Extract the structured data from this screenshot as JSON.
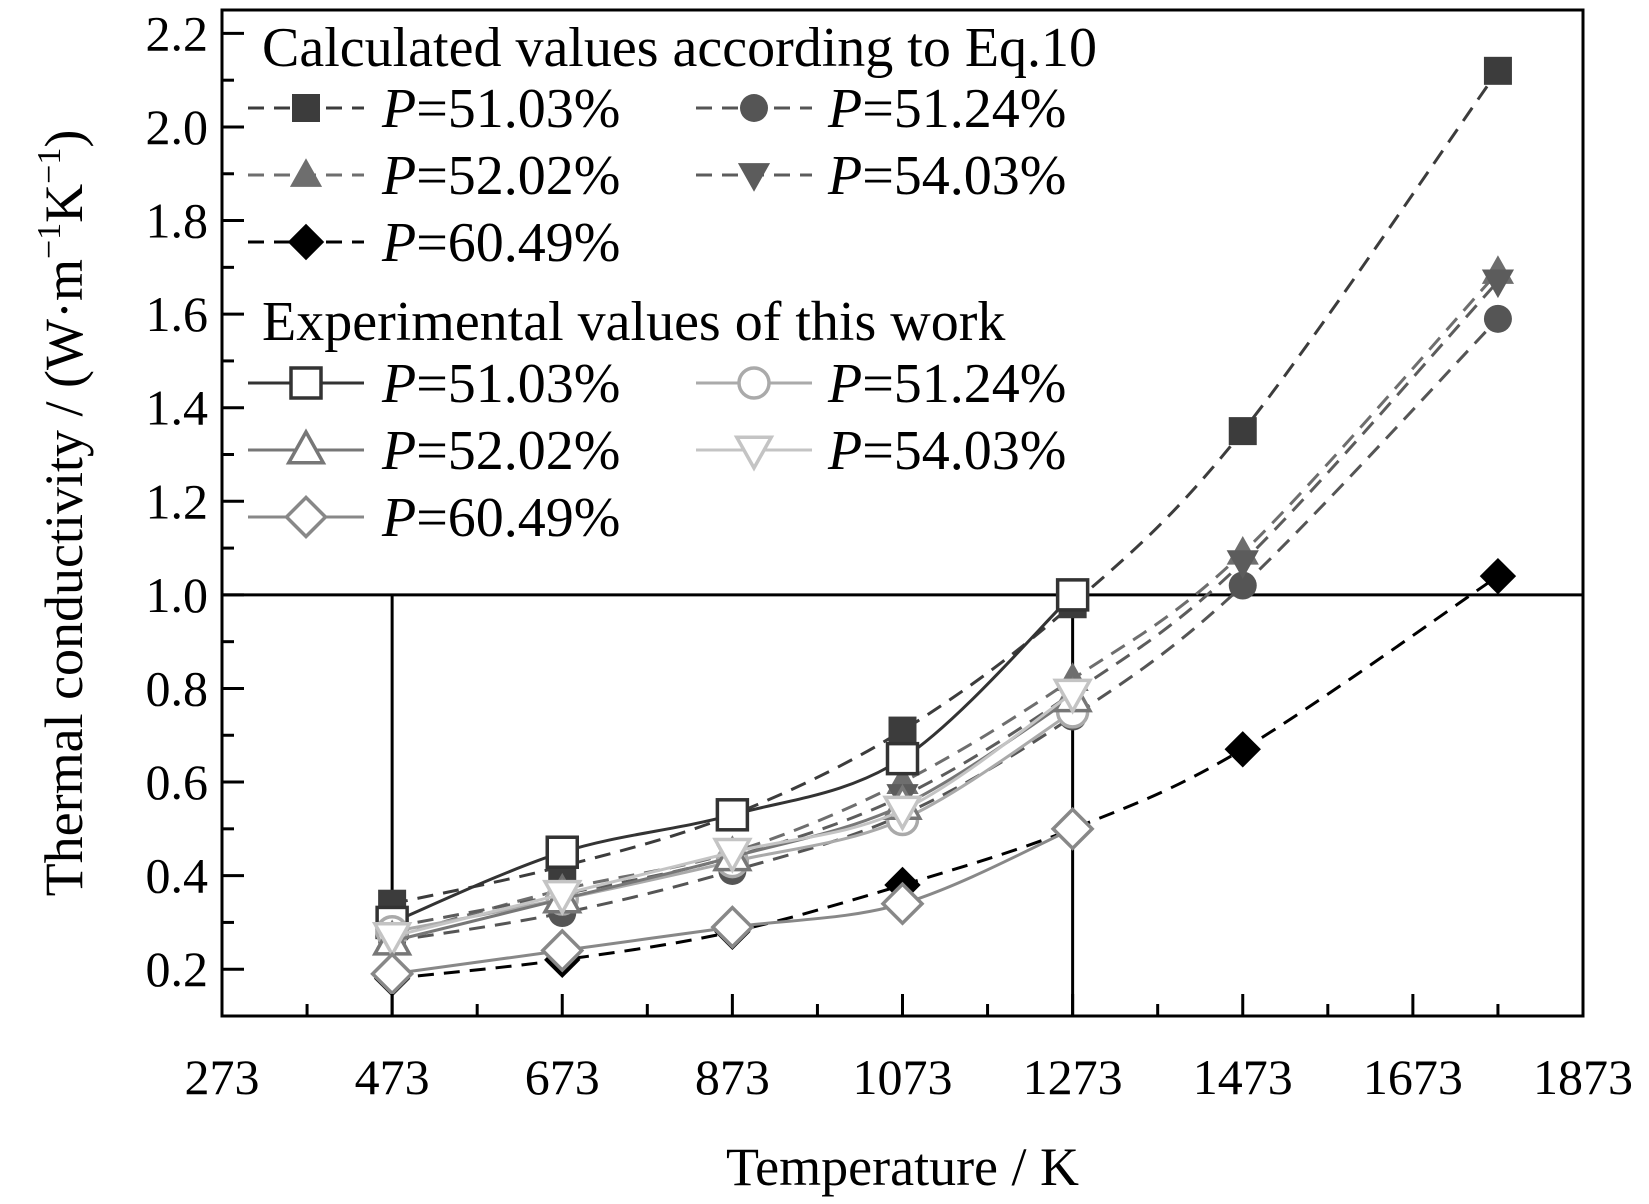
{
  "chart_data": {
    "type": "line",
    "xlabel": "Temperature / K",
    "ylabel_main": "Thermal conductivity / (W·m",
    "ylabel_sup1": "−1",
    "ylabel_mid": "K",
    "ylabel_sup2": "−1",
    "ylabel_end": ")",
    "xlim": [
      273,
      1873
    ],
    "ylim": [
      0.1,
      2.25
    ],
    "x_ticks": [
      273,
      473,
      673,
      873,
      1073,
      1273,
      1473,
      1673,
      1873
    ],
    "y_ticks": [
      0.2,
      0.4,
      0.6,
      0.8,
      1.0,
      1.2,
      1.4,
      1.6,
      1.8,
      2.0,
      2.2
    ],
    "reference_lines": {
      "horizontal_y": 1.0,
      "vertical_x": [
        473,
        1273
      ]
    },
    "legend_groups": [
      {
        "heading": "Calculated values according to Eq.10"
      },
      {
        "heading": "Experimental values of this work"
      }
    ],
    "series": [
      {
        "name": "P=51.03%",
        "var": "P",
        "value_text": "=51.03%",
        "group": 0,
        "marker": "square",
        "filled": true,
        "dashed": true,
        "color": "#3c3c3c",
        "x": [
          473,
          673,
          873,
          1073,
          1273,
          1473,
          1773
        ],
        "y": [
          0.34,
          0.42,
          0.53,
          0.71,
          0.98,
          1.35,
          2.12
        ]
      },
      {
        "name": "P=51.24%",
        "var": "P",
        "value_text": "=51.24%",
        "group": 0,
        "marker": "circle",
        "filled": true,
        "dashed": true,
        "color": "#555555",
        "x": [
          473,
          673,
          873,
          1073,
          1273,
          1473,
          1773
        ],
        "y": [
          0.26,
          0.32,
          0.41,
          0.53,
          0.74,
          1.02,
          1.59
        ]
      },
      {
        "name": "P=52.02%",
        "var": "P",
        "value_text": "=52.02%",
        "group": 0,
        "marker": "triangle-up",
        "filled": true,
        "dashed": true,
        "color": "#6e6e6e",
        "x": [
          473,
          673,
          873,
          1073,
          1273,
          1473,
          1773
        ],
        "y": [
          0.27,
          0.37,
          0.45,
          0.6,
          0.82,
          1.09,
          1.69
        ]
      },
      {
        "name": "P=54.03%",
        "var": "P",
        "value_text": "=54.03%",
        "group": 0,
        "marker": "triangle-down",
        "filled": true,
        "dashed": true,
        "color": "#5c5c5c",
        "x": [
          473,
          673,
          873,
          1073,
          1273,
          1473,
          1773
        ],
        "y": [
          0.29,
          0.36,
          0.44,
          0.57,
          0.79,
          1.07,
          1.67
        ]
      },
      {
        "name": "P=60.49%",
        "var": "P",
        "value_text": "=60.49%",
        "group": 0,
        "marker": "diamond",
        "filled": true,
        "dashed": true,
        "color": "#000000",
        "x": [
          473,
          673,
          873,
          1073,
          1273,
          1473,
          1773
        ],
        "y": [
          0.18,
          0.22,
          0.28,
          0.38,
          0.5,
          0.67,
          1.04
        ]
      },
      {
        "name": "P=51.03%",
        "var": "P",
        "value_text": "=51.03%",
        "group": 1,
        "marker": "square",
        "filled": false,
        "dashed": false,
        "color": "#333333",
        "x": [
          473,
          673,
          873,
          1073,
          1273
        ],
        "y": [
          0.3,
          0.45,
          0.53,
          0.65,
          1.0
        ]
      },
      {
        "name": "P=51.24%",
        "var": "P",
        "value_text": "=51.24%",
        "group": 1,
        "marker": "circle",
        "filled": false,
        "dashed": false,
        "color": "#aaaaaa",
        "x": [
          473,
          673,
          873,
          1073,
          1273
        ],
        "y": [
          0.28,
          0.35,
          0.43,
          0.52,
          0.75
        ]
      },
      {
        "name": "P=52.02%",
        "var": "P",
        "value_text": "=52.02%",
        "group": 1,
        "marker": "triangle-up",
        "filled": false,
        "dashed": false,
        "color": "#777777",
        "x": [
          473,
          673,
          873,
          1073,
          1273
        ],
        "y": [
          0.26,
          0.35,
          0.44,
          0.55,
          0.78
        ]
      },
      {
        "name": "P=54.03%",
        "var": "P",
        "value_text": "=54.03%",
        "group": 1,
        "marker": "triangle-down",
        "filled": false,
        "dashed": false,
        "color": "#c4c4c4",
        "x": [
          473,
          673,
          873,
          1073,
          1273
        ],
        "y": [
          0.27,
          0.36,
          0.45,
          0.54,
          0.79
        ]
      },
      {
        "name": "P=60.49%",
        "var": "P",
        "value_text": "=60.49%",
        "group": 1,
        "marker": "diamond",
        "filled": false,
        "dashed": false,
        "color": "#888888",
        "x": [
          473,
          673,
          873,
          1073,
          1273
        ],
        "y": [
          0.19,
          0.24,
          0.29,
          0.34,
          0.5
        ]
      }
    ]
  }
}
